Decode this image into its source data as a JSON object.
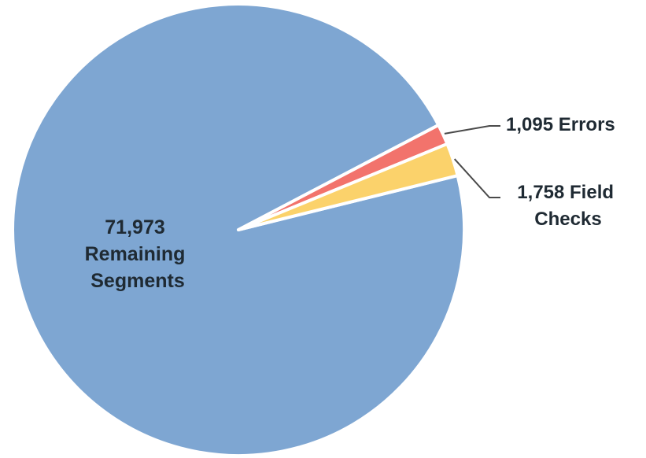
{
  "chart_data": {
    "type": "pie",
    "slices": [
      {
        "label_lines": [
          "71,973",
          "Remaining",
          "Segments"
        ],
        "value": 71973,
        "color": "#7ea6d2"
      },
      {
        "label_lines": [
          "1,095 Errors"
        ],
        "value": 1095,
        "color": "#f2736c"
      },
      {
        "label_lines": [
          "1,758 Field",
          "Checks"
        ],
        "value": 1758,
        "color": "#fbd26b"
      }
    ]
  }
}
